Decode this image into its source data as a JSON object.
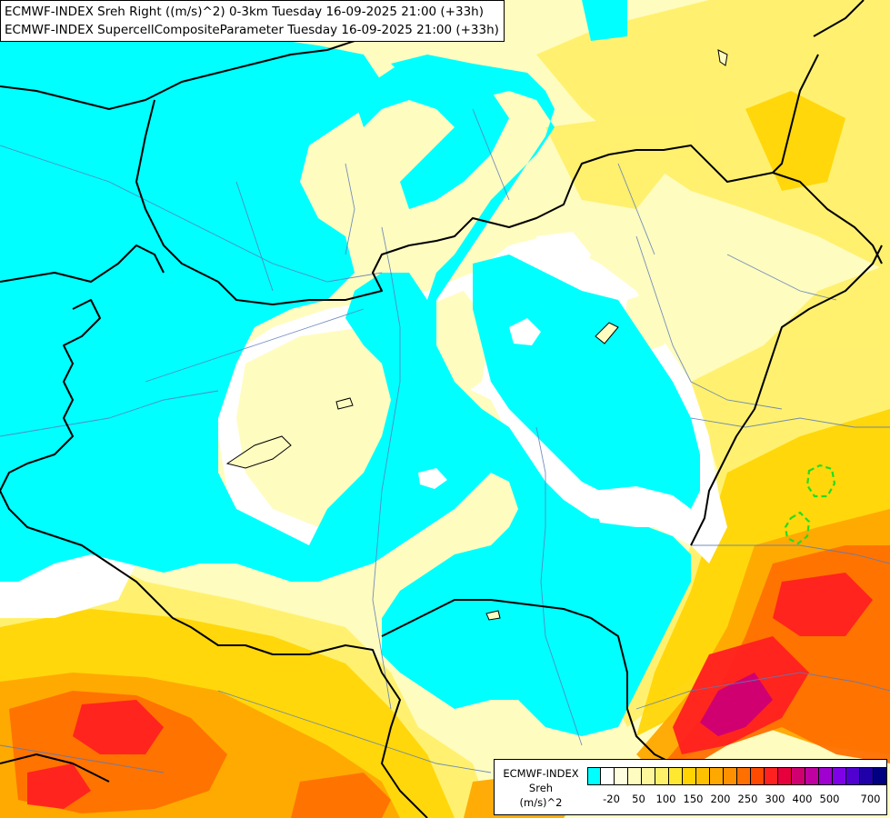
{
  "title": {
    "line1": "ECMWF-INDEX Sreh Right ((m/s)^2) 0-3km Tuesday 16-09-2025 21:00 (+33h)",
    "line2": "ECMWF-INDEX SupercellCompositeParameter Tuesday 16-09-2025 21:00 (+33h)"
  },
  "legend": {
    "line1": "ECMWF-INDEX",
    "line2": "Sreh",
    "line3": "(m/s)^2",
    "colors": [
      "#00ffff",
      "#ffffff",
      "#fffde0",
      "#fffcc0",
      "#fff89a",
      "#fff06a",
      "#ffe830",
      "#ffd400",
      "#ffc000",
      "#ffa800",
      "#ff9000",
      "#ff7000",
      "#ff4a00",
      "#ff2020",
      "#e8003c",
      "#d00070",
      "#c000a0",
      "#a000d0",
      "#8000e8",
      "#5000d0",
      "#2000a8",
      "#000080"
    ],
    "ticks": [
      "-20",
      "50",
      "100",
      "150",
      "200",
      "250",
      "300",
      "400",
      "500",
      "700"
    ]
  },
  "colors": {
    "cyan": "#00ffff",
    "white": "#ffffff",
    "pale": "#fffcc0",
    "yellow": "#fff06a",
    "gold": "#ffd400",
    "orange": "#ffa800",
    "dark-orange": "#ff7000",
    "red": "#ff2020",
    "magenta": "#d00070",
    "scp-contour": "#22dd22",
    "border": "#000000",
    "river": "#5a7ab8"
  }
}
